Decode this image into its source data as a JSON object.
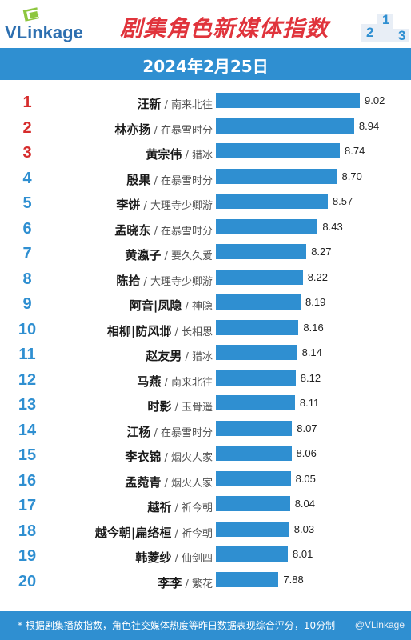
{
  "header": {
    "logo_text": "VLinkage",
    "title": "剧集角色新媒体指数",
    "podium": [
      "2",
      "1",
      "3"
    ]
  },
  "date": "2024年2月25日",
  "colors": {
    "brand_blue": "#2f8fd1",
    "title_red": "#e0343c",
    "top3_red": "#d62c2c",
    "rank_blue": "#2f8fd1"
  },
  "chart_data": {
    "type": "bar",
    "orientation": "horizontal",
    "title": "剧集角色新媒体指数",
    "subtitle": "2024年2月25日",
    "xlim": [
      7,
      9.1
    ],
    "ranks": [
      1,
      2,
      3,
      4,
      5,
      6,
      7,
      8,
      9,
      10,
      11,
      12,
      13,
      14,
      15,
      16,
      17,
      18,
      19,
      20
    ],
    "names": [
      "汪新",
      "林亦扬",
      "黄宗伟",
      "殷果",
      "李饼",
      "孟晓东",
      "黄瀛子",
      "陈拾",
      "阿音|凤隐",
      "相柳|防风邶",
      "赵友男",
      "马燕",
      "时影",
      "江杨",
      "李衣锦",
      "孟菀青",
      "越祈",
      "越今朝|扁络桓",
      "韩菱纱",
      "李李"
    ],
    "dramas": [
      "南来北往",
      "在暴雪时分",
      "猎冰",
      "在暴雪时分",
      "大理寺少卿游",
      "在暴雪时分",
      "要久久爱",
      "大理寺少卿游",
      "神隐",
      "长相思",
      "猎冰",
      "南来北往",
      "玉骨遥",
      "在暴雪时分",
      "烟火人家",
      "烟火人家",
      "祈今朝",
      "祈今朝",
      "仙剑四",
      "繁花"
    ],
    "values": [
      9.02,
      8.94,
      8.74,
      8.7,
      8.57,
      8.43,
      8.27,
      8.22,
      8.19,
      8.16,
      8.14,
      8.12,
      8.11,
      8.07,
      8.06,
      8.05,
      8.04,
      8.03,
      8.01,
      7.88
    ]
  },
  "footer": {
    "note": "* 根据剧集播放指数，角色社交媒体热度等昨日数据表现综合评分，10分制",
    "watermark": "@VLinkage"
  }
}
